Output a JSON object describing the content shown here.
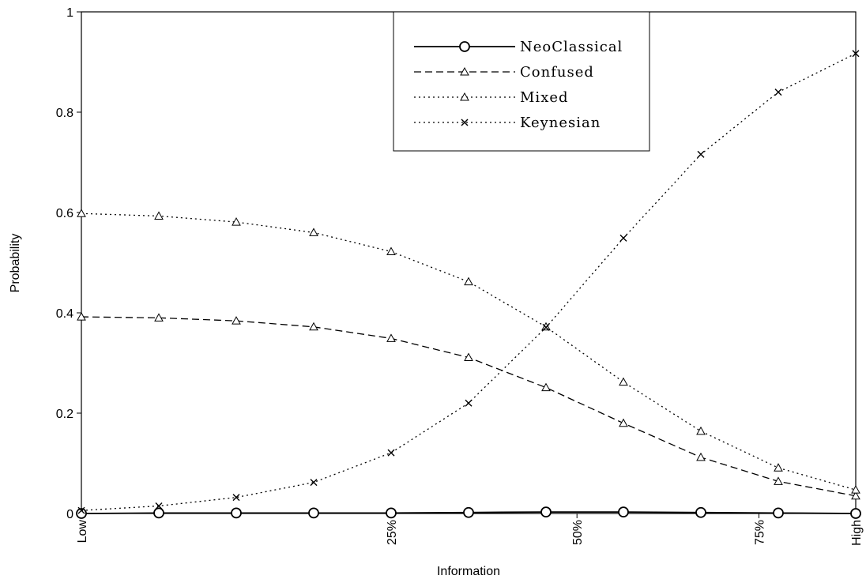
{
  "chart_data": {
    "type": "line",
    "xlabel": "Information",
    "ylabel": "Probability",
    "ylim": [
      0,
      1
    ],
    "xlim": [
      0,
      1
    ],
    "yticks": [
      0,
      0.2,
      0.4,
      0.6,
      0.8,
      1
    ],
    "ytick_labels": [
      "0",
      "0.2",
      "0.4",
      "0.6",
      "0.8",
      "1"
    ],
    "xtick_labels": [
      {
        "pos": 0,
        "label": "Low"
      },
      {
        "pos": 0.4,
        "label": "25%"
      },
      {
        "pos": 0.64,
        "label": "50%"
      },
      {
        "pos": 0.875,
        "label": "75%"
      },
      {
        "pos": 1,
        "label": "High"
      }
    ],
    "x": [
      0,
      0.1,
      0.2,
      0.3,
      0.4,
      0.5,
      0.6,
      0.7,
      0.8,
      0.9,
      1.0
    ],
    "grid": false,
    "legend_position": "top-center",
    "series": [
      {
        "name": "NeoClassical",
        "marker": "circle",
        "dash": "solid",
        "values": [
          0.0,
          0.001,
          0.001,
          0.001,
          0.001,
          0.002,
          0.003,
          0.003,
          0.002,
          0.001,
          0.0
        ]
      },
      {
        "name": "Confused",
        "marker": "triangle",
        "dash": "dashed",
        "values": [
          0.392,
          0.39,
          0.384,
          0.372,
          0.349,
          0.311,
          0.251,
          0.18,
          0.112,
          0.064,
          0.035
        ]
      },
      {
        "name": "Mixed",
        "marker": "triangle",
        "dash": "dotted",
        "values": [
          0.598,
          0.593,
          0.581,
          0.56,
          0.522,
          0.462,
          0.372,
          0.262,
          0.164,
          0.091,
          0.047
        ]
      },
      {
        "name": "Keynesian",
        "marker": "x",
        "dash": "dashdot",
        "values": [
          0.006,
          0.015,
          0.032,
          0.062,
          0.121,
          0.22,
          0.371,
          0.549,
          0.716,
          0.84,
          0.917
        ]
      }
    ]
  }
}
